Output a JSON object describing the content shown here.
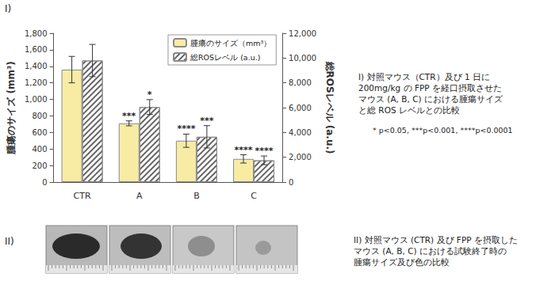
{
  "chart_data": {
    "type": "bar",
    "panel_label": "I)",
    "categories": [
      "CTR",
      "A",
      "B",
      "C"
    ],
    "y_label": "腫瘍のサイズ (mm³)",
    "y2_label": "総ROSレベル (a.u.)",
    "ylim": [
      0,
      1800
    ],
    "yticks": [
      0,
      200,
      400,
      600,
      800,
      {
        "value": 1000,
        "label": "1,000"
      },
      {
        "value": 1200,
        "label": "1,200"
      },
      {
        "value": 1400,
        "label": "1,400"
      },
      {
        "value": 1600,
        "label": "1,600"
      },
      {
        "value": 1800,
        "label": "1,800"
      }
    ],
    "y2lim": [
      0,
      12000
    ],
    "y2ticks": [
      0,
      {
        "value": 2000,
        "label": "2,000"
      },
      {
        "value": 4000,
        "label": "4,000"
      },
      {
        "value": 6000,
        "label": "6,000"
      },
      {
        "value": 8000,
        "label": "8,000"
      },
      {
        "value": 10000,
        "label": "10,000"
      },
      {
        "value": 12000,
        "label": "12,000"
      }
    ],
    "grid": false,
    "legend": "top",
    "series": [
      {
        "name": "腫瘍のサイズ（mm³）",
        "color": "#f8eca4",
        "axis": "y",
        "values": [
          1360,
          710,
          500,
          280
        ],
        "errors": [
          160,
          30,
          80,
          50
        ],
        "significance": [
          null,
          "***",
          "****",
          "****"
        ]
      },
      {
        "name": "総ROSレベル (a.u.)",
        "color": "#ffffff",
        "axis": "y2",
        "values": [
          9800,
          6050,
          3650,
          1750
        ],
        "errors": [
          1300,
          600,
          900,
          350
        ],
        "significance": [
          null,
          "*",
          "***",
          "****"
        ]
      }
    ]
  },
  "captions": {
    "caption_1": [
      "I)  対照マウス（CTR）及び 1 日に",
      "200mg/kg の FPP を経口摂取させた",
      "マウス (A, B, C) における腫瘍サイズ",
      "と総 ROS レベルとの比較"
    ],
    "significance_note": "* p<0.05,   ***p<0.001,  ****p<0.0001",
    "panel_2_label": "II)",
    "caption_2": [
      "II)  対照マウス (CTR) 及び FPP を摂取した",
      "マウス (A, B, C) における試験終了時の",
      "腫瘍サイズ及び色の比較"
    ]
  }
}
